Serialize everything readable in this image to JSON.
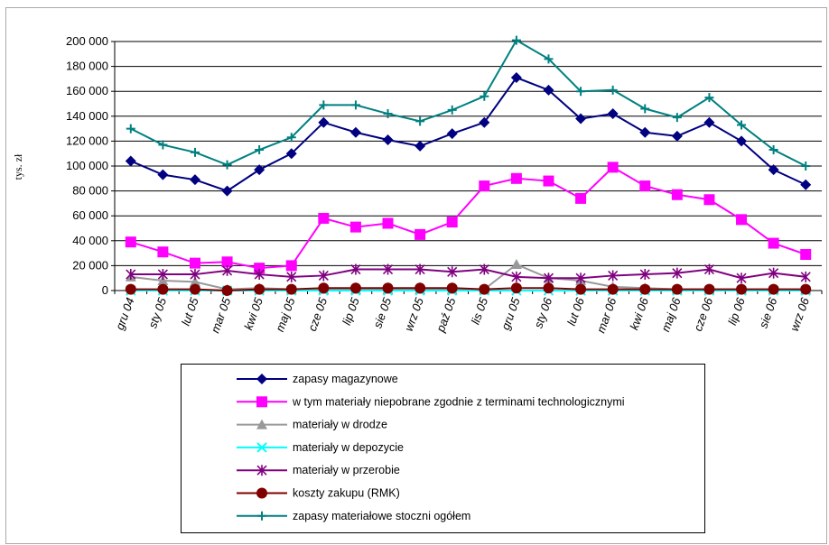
{
  "chart_data": {
    "type": "line",
    "y_label": "tys. zł",
    "categories": [
      "gru 04",
      "sty 05",
      "lut 05",
      "mar 05",
      "kwi 05",
      "maj 05",
      "cze 05",
      "lip 05",
      "sie 05",
      "wrz 05",
      "paź 05",
      "lis 05",
      "gru 05",
      "sty 06",
      "lut 06",
      "mar 06",
      "kwi 06",
      "maj 06",
      "cze 06",
      "lip 06",
      "sie 06",
      "wrz 06"
    ],
    "ylim": [
      0,
      200000
    ],
    "yticks": [
      0,
      {
        "value": 20000,
        "label": "20 000"
      },
      {
        "value": 40000,
        "label": "40 000"
      },
      {
        "value": 60000,
        "label": "60 000"
      },
      {
        "value": 80000,
        "label": "80 000"
      },
      {
        "value": 100000,
        "label": "100 000"
      },
      {
        "value": 120000,
        "label": "120 000"
      },
      {
        "value": 140000,
        "label": "140 000"
      },
      {
        "value": 160000,
        "label": "160 000"
      },
      {
        "value": 180000,
        "label": "180 000"
      },
      {
        "value": 200000,
        "label": "200 000"
      }
    ],
    "grid": true,
    "legend": "bottom",
    "series": [
      {
        "name": "zapasy magazynowe",
        "color": "#000080",
        "marker": "diamond",
        "values": [
          104000,
          93000,
          89000,
          80000,
          97000,
          110000,
          135000,
          127000,
          121000,
          116000,
          126000,
          135000,
          171000,
          161000,
          138000,
          142000,
          127000,
          124000,
          135000,
          120000,
          97000,
          85000
        ]
      },
      {
        "name": "w tym materiały niepobrane zgodnie z terminami technologicznymi",
        "color": "#ff00ff",
        "marker": "square",
        "values": [
          39000,
          31000,
          22000,
          23000,
          18000,
          20000,
          58000,
          51000,
          54000,
          45000,
          55000,
          84000,
          90000,
          88000,
          74000,
          99000,
          84000,
          77000,
          73000,
          57000,
          38000,
          29000
        ]
      },
      {
        "name": "materiały w drodze",
        "color": "#999999",
        "marker": "triangle",
        "values": [
          11000,
          8000,
          7000,
          1000,
          2000,
          1000,
          1000,
          1000,
          1000,
          1000,
          1000,
          1000,
          21000,
          10000,
          8000,
          3000,
          2000,
          1000,
          1000,
          1000,
          1000,
          1000
        ]
      },
      {
        "name": "materiały w depozycie",
        "color": "#00ffff",
        "marker": "x",
        "values": [
          0,
          0,
          0,
          0,
          0,
          0,
          0,
          0,
          0,
          0,
          0,
          0,
          0,
          0,
          0,
          0,
          0,
          0,
          0,
          0,
          0,
          0
        ]
      },
      {
        "name": "materiały w przerobie",
        "color": "#800080",
        "marker": "star",
        "values": [
          13000,
          13000,
          13000,
          16000,
          13000,
          11000,
          12000,
          17000,
          17000,
          17000,
          15000,
          17000,
          11000,
          10000,
          10000,
          12000,
          13000,
          14000,
          17000,
          10000,
          14000,
          11000
        ]
      },
      {
        "name": "koszty zakupu (RMK)",
        "color": "#800000",
        "marker": "circle",
        "values": [
          1000,
          1000,
          1000,
          0,
          1000,
          1000,
          2000,
          2000,
          2000,
          2000,
          2000,
          1000,
          2000,
          2000,
          1000,
          1000,
          1000,
          1000,
          1000,
          1000,
          1000,
          1000
        ]
      },
      {
        "name": "zapasy materiałowe stoczni ogółem",
        "color": "#008080",
        "marker": "plus",
        "values": [
          130000,
          117000,
          111000,
          101000,
          113000,
          123000,
          149000,
          149000,
          142000,
          136000,
          145000,
          156000,
          201000,
          186000,
          160000,
          161000,
          146000,
          139000,
          155000,
          133000,
          113000,
          100000
        ]
      }
    ]
  }
}
